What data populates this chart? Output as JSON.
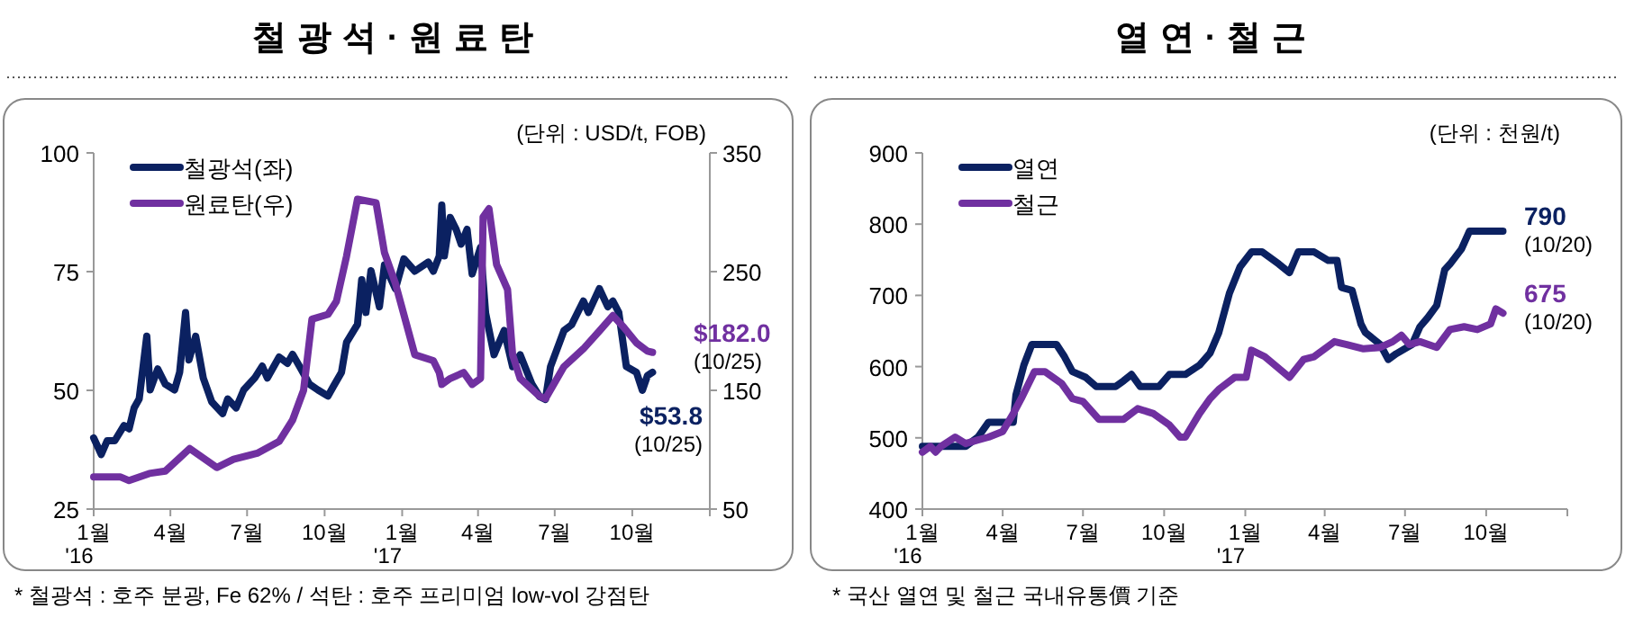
{
  "chart_data": [
    {
      "type": "line",
      "title": "철광석·원료탄",
      "xlim": [
        "2016-01-01",
        "2018-01-01"
      ],
      "xticks": [
        {
          "value": "2016-01",
          "label": "1월\n'16"
        },
        {
          "value": "2016-04",
          "label": "4월"
        },
        {
          "value": "2016-07",
          "label": "7월"
        },
        {
          "value": "2016-10",
          "label": "10월"
        },
        {
          "value": "2017-01",
          "label": "1월\n'17"
        },
        {
          "value": "2017-04",
          "label": "4월"
        },
        {
          "value": "2017-07",
          "label": "7월"
        },
        {
          "value": "2017-10",
          "label": "10월"
        }
      ],
      "ylim": [
        25,
        100
      ],
      "yticks": [
        25,
        50,
        75,
        100
      ],
      "y2lim": [
        50,
        350
      ],
      "y2ticks": [
        50,
        150,
        250,
        350
      ],
      "legend": "top left",
      "grid": false,
      "annotations": [
        "(단위 : USD/t, FOB)",
        "$53.8\n(10/25)",
        "$182.0\n(10/25)",
        "* 철광석 : 호주 분광, Fe 62% / 석탄 : 호주 프리미엄 low-vol 강점탄"
      ],
      "series": [
        {
          "name": "철광석(좌)",
          "color": "#0b2161",
          "x": [
            "2016-01-01",
            "2016-01-10",
            "2016-01-17",
            "2016-01-26",
            "2016-02-06",
            "2016-02-12",
            "2016-02-18",
            "2016-02-24",
            "2016-03-04",
            "2016-03-08",
            "2016-03-17",
            "2016-03-26",
            "2016-04-06",
            "2016-04-12",
            "2016-04-19",
            "2016-04-23",
            "2016-05-01",
            "2016-05-10",
            "2016-05-20",
            "2016-06-02",
            "2016-06-08",
            "2016-06-18",
            "2016-06-27",
            "2016-07-10",
            "2016-07-19",
            "2016-07-25",
            "2016-08-08",
            "2016-08-18",
            "2016-08-24",
            "2016-09-03",
            "2016-09-13",
            "2016-09-23",
            "2016-10-05",
            "2016-10-11",
            "2016-10-21",
            "2016-10-27",
            "2016-11-09",
            "2016-11-14",
            "2016-11-19",
            "2016-11-25",
            "2016-12-05",
            "2016-12-11",
            "2016-12-24",
            "2017-01-03",
            "2017-01-16",
            "2017-02-01",
            "2017-02-07",
            "2017-02-14",
            "2017-02-17",
            "2017-02-20",
            "2017-02-27",
            "2017-03-06",
            "2017-03-12",
            "2017-03-19",
            "2017-03-25",
            "2017-04-04",
            "2017-04-10",
            "2017-04-20",
            "2017-05-02",
            "2017-05-12",
            "2017-05-21",
            "2017-06-04",
            "2017-06-13",
            "2017-06-20",
            "2017-06-26",
            "2017-07-12",
            "2017-07-21",
            "2017-08-04",
            "2017-08-10",
            "2017-08-23",
            "2017-09-02",
            "2017-09-08",
            "2017-09-15",
            "2017-09-24",
            "2017-10-06",
            "2017-10-13",
            "2017-10-19",
            "2017-10-25"
          ],
          "values": [
            40.0,
            36.5,
            39.4,
            39.4,
            42.6,
            41.9,
            46.3,
            48.2,
            61.4,
            50.1,
            54.5,
            51.3,
            50.1,
            53.8,
            66.4,
            56.4,
            61.4,
            52.6,
            47.6,
            45.1,
            48.2,
            46.3,
            50.1,
            52.6,
            55.1,
            52.6,
            57.0,
            55.7,
            57.6,
            54.5,
            51.3,
            50.1,
            48.8,
            50.7,
            53.8,
            60.1,
            63.9,
            73.3,
            66.4,
            75.2,
            67.6,
            76.4,
            71.4,
            77.7,
            75.1,
            77.0,
            75.1,
            78.3,
            89.0,
            78.3,
            86.4,
            83.9,
            80.8,
            83.9,
            74.5,
            80.1,
            66.3,
            57.5,
            62.6,
            55.0,
            57.5,
            51.3,
            48.7,
            48.1,
            55.0,
            62.6,
            63.8,
            68.8,
            66.4,
            71.4,
            67.6,
            68.8,
            66.4,
            55.0,
            53.8,
            50.0,
            53.1,
            53.8
          ]
        },
        {
          "name": "원료탄(우)",
          "color": "#7030a0",
          "axis": "y2",
          "x": [
            "2016-01-01",
            "2016-02-02",
            "2016-02-12",
            "2016-03-07",
            "2016-03-26",
            "2016-04-24",
            "2016-05-26",
            "2016-06-15",
            "2016-07-13",
            "2016-08-08",
            "2016-08-24",
            "2016-09-06",
            "2016-09-16",
            "2016-10-05",
            "2016-10-15",
            "2016-10-27",
            "2016-11-09",
            "2016-12-01",
            "2016-12-11",
            "2016-12-24",
            "2017-01-16",
            "2017-02-07",
            "2017-02-14",
            "2017-02-17",
            "2017-02-27",
            "2017-03-15",
            "2017-03-25",
            "2017-04-04",
            "2017-04-07",
            "2017-04-14",
            "2017-04-23",
            "2017-05-06",
            "2017-05-12",
            "2017-05-21",
            "2017-06-13",
            "2017-06-20",
            "2017-07-12",
            "2017-08-04",
            "2017-08-23",
            "2017-09-08",
            "2017-09-21",
            "2017-10-06",
            "2017-10-19",
            "2017-10-25"
          ],
          "values": [
            77,
            77,
            74,
            80,
            82,
            101,
            85,
            92,
            97,
            107,
            125,
            150,
            210,
            214,
            225,
            263,
            311,
            308,
            266,
            240,
            180,
            175,
            165,
            155,
            160,
            165,
            155,
            160,
            296,
            303,
            256,
            235,
            180,
            160,
            145,
            143,
            170,
            185,
            200,
            213,
            203,
            190,
            183,
            182
          ]
        }
      ]
    },
    {
      "type": "line",
      "title": "열연·철근",
      "xlim": [
        "2016-01-01",
        "2018-01-01"
      ],
      "xticks": [
        {
          "value": "2016-01",
          "label": "1월\n'16"
        },
        {
          "value": "2016-04",
          "label": "4월"
        },
        {
          "value": "2016-07",
          "label": "7월"
        },
        {
          "value": "2016-10",
          "label": "10월"
        },
        {
          "value": "2017-01",
          "label": "1월\n'17"
        },
        {
          "value": "2017-04",
          "label": "4월"
        },
        {
          "value": "2017-07",
          "label": "7월"
        },
        {
          "value": "2017-10",
          "label": "10월"
        }
      ],
      "ylim": [
        400,
        900
      ],
      "yticks": [
        400,
        500,
        600,
        700,
        800,
        900
      ],
      "legend": "top left",
      "grid": false,
      "annotations": [
        "(단위 : 천원/t)",
        "790\n(10/20)",
        "675\n(10/20)",
        "* 국산 열연 및 철근 국내유통價 기준"
      ],
      "series": [
        {
          "name": "열연",
          "color": "#0b2161",
          "x": [
            "2016-01-01",
            "2016-02-19",
            "2016-03-04",
            "2016-03-16",
            "2016-04-13",
            "2016-04-16",
            "2016-04-25",
            "2016-05-04",
            "2016-06-01",
            "2016-06-10",
            "2016-06-19",
            "2016-07-04",
            "2016-07-16",
            "2016-08-07",
            "2016-08-16",
            "2016-08-25",
            "2016-09-04",
            "2016-09-25",
            "2016-10-07",
            "2016-10-25",
            "2016-11-10",
            "2016-11-22",
            "2016-12-02",
            "2016-12-14",
            "2016-12-26",
            "2017-01-08",
            "2017-01-20",
            "2017-02-08",
            "2017-02-20",
            "2017-03-02",
            "2017-03-20",
            "2017-04-05",
            "2017-04-15",
            "2017-04-20",
            "2017-05-02",
            "2017-05-12",
            "2017-05-17",
            "2017-06-03",
            "2017-06-12",
            "2017-06-21",
            "2017-07-09",
            "2017-07-18",
            "2017-07-27",
            "2017-08-06",
            "2017-08-15",
            "2017-08-21",
            "2017-09-03",
            "2017-09-12",
            "2017-10-20"
          ],
          "values": [
            488,
            488,
            501,
            522,
            522,
            560,
            602,
            631,
            631,
            614,
            593,
            585,
            572,
            572,
            580,
            589,
            572,
            572,
            589,
            589,
            602,
            619,
            648,
            703,
            740,
            761,
            761,
            744,
            732,
            761,
            761,
            749,
            749,
            711,
            707,
            660,
            648,
            631,
            610,
            618,
            631,
            656,
            669,
            686,
            736,
            744,
            765,
            790,
            790
          ]
        },
        {
          "name": "철근",
          "color": "#7030a0",
          "x": [
            "2016-01-01",
            "2016-01-10",
            "2016-01-16",
            "2016-01-22",
            "2016-02-07",
            "2016-02-19",
            "2016-03-04",
            "2016-03-16",
            "2016-04-01",
            "2016-04-13",
            "2016-04-22",
            "2016-05-07",
            "2016-05-19",
            "2016-06-07",
            "2016-06-19",
            "2016-07-01",
            "2016-07-19",
            "2016-08-16",
            "2016-09-01",
            "2016-09-19",
            "2016-10-07",
            "2016-10-19",
            "2016-10-25",
            "2016-11-10",
            "2016-11-22",
            "2016-12-02",
            "2016-12-20",
            "2017-01-02",
            "2017-01-08",
            "2017-01-23",
            "2017-02-20",
            "2017-03-08",
            "2017-03-20",
            "2017-04-12",
            "2017-04-26",
            "2017-05-15",
            "2017-06-03",
            "2017-06-17",
            "2017-06-27",
            "2017-07-06",
            "2017-07-18",
            "2017-08-06",
            "2017-08-21",
            "2017-09-06",
            "2017-09-21",
            "2017-10-06",
            "2017-10-12",
            "2017-10-20"
          ],
          "values": [
            480,
            488,
            480,
            488,
            501,
            492,
            497,
            501,
            509,
            534,
            555,
            593,
            593,
            576,
            555,
            551,
            526,
            526,
            541,
            534,
            518,
            501,
            501,
            534,
            555,
            568,
            585,
            585,
            623,
            614,
            585,
            610,
            614,
            635,
            631,
            625,
            627,
            635,
            644,
            631,
            635,
            627,
            652,
            656,
            652,
            660,
            681,
            675
          ]
        }
      ]
    }
  ]
}
